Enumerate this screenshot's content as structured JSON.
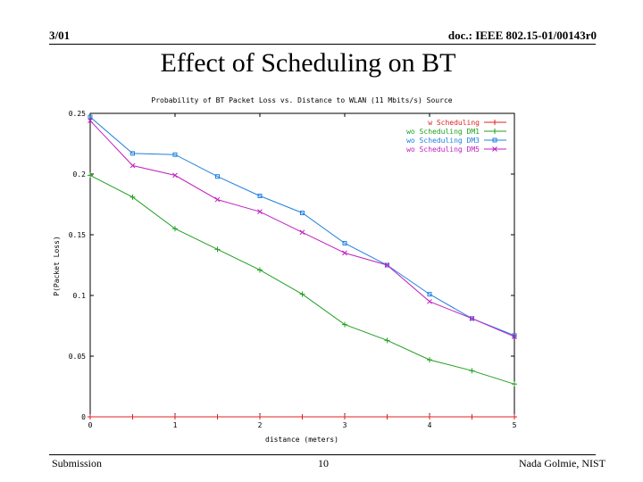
{
  "header": {
    "date": "3/01",
    "doc": "doc.: IEEE 802.15-01/00143r0"
  },
  "slide": {
    "title": "Effect of Scheduling on BT"
  },
  "footer": {
    "left": "Submission",
    "page": "10",
    "author": "Nada Golmie, NIST"
  },
  "chart_data": {
    "type": "line",
    "title": "Probability of BT Packet Loss vs. Distance to WLAN (11 Mbits/s) Source",
    "xlabel": "distance (meters)",
    "ylabel": "P(Packet Loss)",
    "xlim": [
      0,
      5
    ],
    "ylim": [
      0,
      0.25
    ],
    "xticks": [
      0,
      1,
      2,
      3,
      4,
      5
    ],
    "yticks": [
      0,
      0.05,
      0.1,
      0.15,
      0.2,
      0.25
    ],
    "legend_position": "top-right",
    "series": [
      {
        "name": "w Scheduling",
        "color": "#e02020",
        "marker": "plus",
        "x": [
          0,
          0.5,
          1,
          1.5,
          2,
          2.5,
          3,
          3.5,
          4,
          4.5,
          5
        ],
        "y": [
          0,
          0,
          0,
          0,
          0,
          0,
          0,
          0,
          0,
          0,
          0
        ]
      },
      {
        "name": "wo Scheduling DM1",
        "color": "#20a020",
        "marker": "plus",
        "x": [
          0,
          0.5,
          1,
          1.5,
          2,
          2.5,
          3,
          3.5,
          4,
          4.5,
          5
        ],
        "y": [
          0.199,
          0.181,
          0.155,
          0.138,
          0.121,
          0.101,
          0.076,
          0.063,
          0.047,
          0.038,
          0.027
        ]
      },
      {
        "name": "wo Scheduling DM3",
        "color": "#2080e0",
        "marker": "square",
        "x": [
          0,
          0.5,
          1,
          1.5,
          2,
          2.5,
          3,
          3.5,
          4,
          4.5,
          5
        ],
        "y": [
          0.247,
          0.217,
          0.216,
          0.198,
          0.182,
          0.168,
          0.143,
          0.125,
          0.101,
          0.081,
          0.067
        ]
      },
      {
        "name": "wo Scheduling DM5",
        "color": "#c020c0",
        "marker": "cross",
        "x": [
          0,
          0.5,
          1,
          1.5,
          2,
          2.5,
          3,
          3.5,
          4,
          4.5,
          5
        ],
        "y": [
          0.244,
          0.207,
          0.199,
          0.179,
          0.169,
          0.152,
          0.135,
          0.125,
          0.095,
          0.081,
          0.066
        ]
      }
    ]
  }
}
